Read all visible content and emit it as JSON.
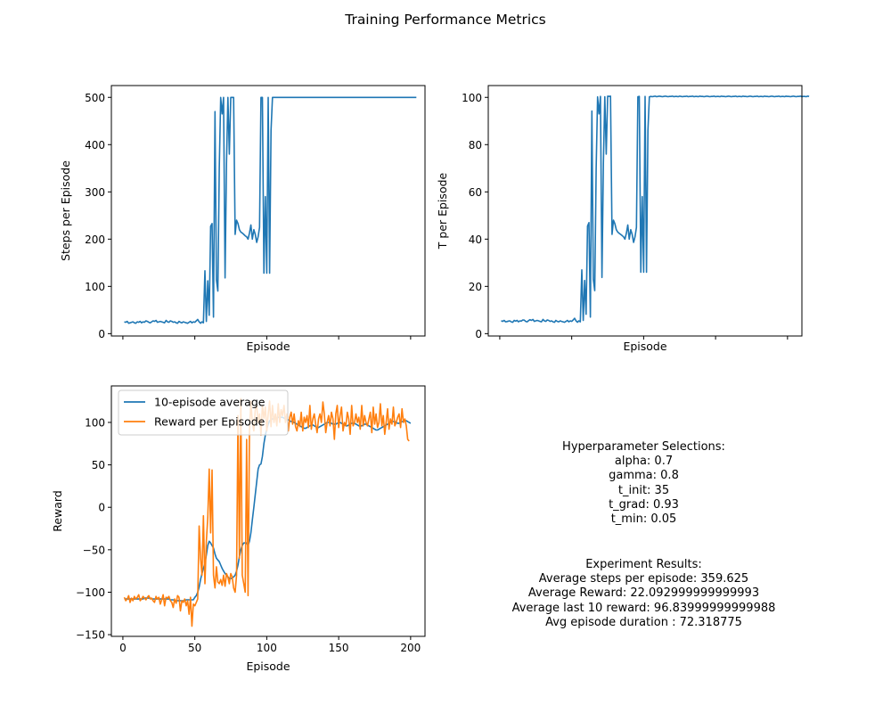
{
  "figure": {
    "title": "Training Performance Metrics"
  },
  "chart_data": [
    {
      "id": "steps",
      "type": "line",
      "title": "",
      "xlabel": "Episode",
      "ylabel": "Steps per Episode",
      "xlim": [
        -8,
        210
      ],
      "ylim": [
        -5,
        525
      ],
      "xticks": [
        0,
        50,
        100,
        150,
        200
      ],
      "xtick_labels_visible": false,
      "yticks": [
        0,
        100,
        200,
        300,
        400,
        500
      ],
      "grid": false,
      "color": "#1f77b4",
      "series": [
        {
          "x_start": 1,
          "values": [
            25,
            24,
            26,
            22,
            23,
            24,
            25,
            23,
            22,
            25,
            24,
            26,
            23,
            25,
            24,
            27,
            26,
            24,
            23,
            25,
            27,
            26,
            28,
            24,
            25,
            26,
            25,
            24,
            23,
            28,
            25,
            24,
            27,
            26,
            24,
            25,
            23,
            22,
            26,
            24,
            23,
            25,
            24,
            23,
            22,
            24,
            26,
            23,
            25,
            24,
            27,
            30,
            25,
            22,
            25,
            23,
            133,
            26,
            112,
            39,
            227,
            233,
            35,
            470,
            114,
            90,
            350,
            500,
            465,
            500,
            118,
            360,
            500,
            380,
            500,
            500,
            500,
            210,
            240,
            233,
            220,
            215,
            213,
            210,
            207,
            205,
            200,
            213,
            230,
            200,
            220,
            210,
            193,
            205,
            225,
            500,
            500,
            128,
            290,
            128,
            500,
            128,
            430,
            500,
            500,
            500,
            500,
            500,
            500,
            500,
            500,
            500,
            500,
            500,
            500,
            500,
            500,
            500,
            500,
            500,
            500,
            500,
            500,
            500,
            500,
            500,
            500,
            500,
            500,
            500,
            500,
            500,
            500,
            500,
            500,
            500,
            500,
            500,
            500,
            500,
            500,
            500,
            500,
            500,
            500,
            500,
            500,
            500,
            500,
            500,
            500,
            500,
            500,
            500,
            500,
            500,
            500,
            500,
            500,
            500,
            500,
            500,
            500,
            500,
            500,
            500,
            500,
            500,
            500,
            500,
            500,
            500,
            500,
            500,
            500,
            500,
            500,
            500,
            500,
            500,
            500,
            500,
            500,
            500,
            500,
            500,
            500,
            500,
            500,
            500,
            500,
            500,
            500,
            500,
            500,
            500,
            500,
            500,
            500,
            500,
            500,
            500,
            500,
            500
          ]
        }
      ]
    },
    {
      "id": "t",
      "type": "line",
      "title": "",
      "xlabel": "Episode",
      "ylabel": "T per Episode",
      "xlim": [
        -8,
        210
      ],
      "ylim": [
        -1,
        105
      ],
      "xticks": [
        0,
        50,
        100,
        150,
        200
      ],
      "xtick_labels_visible": false,
      "yticks": [
        0,
        20,
        40,
        60,
        80,
        100
      ],
      "grid": false,
      "color": "#1f77b4",
      "series": [
        {
          "x_start": 1,
          "values": [
            5.5,
            5.2,
            5.6,
            5.0,
            5.1,
            5.3,
            5.4,
            5.0,
            4.8,
            5.6,
            5.3,
            5.6,
            5.0,
            5.4,
            5.3,
            5.8,
            5.7,
            5.2,
            5.0,
            5.5,
            5.9,
            5.6,
            6.0,
            5.2,
            5.4,
            5.6,
            5.4,
            5.2,
            5.0,
            6.0,
            5.4,
            5.2,
            5.8,
            5.6,
            5.2,
            5.4,
            5.0,
            4.8,
            5.6,
            5.2,
            5.0,
            5.4,
            5.2,
            5.0,
            4.8,
            5.2,
            5.6,
            5.0,
            5.4,
            5.2,
            5.8,
            6.5,
            5.4,
            4.8,
            5.4,
            5.0,
            27,
            5.6,
            22.5,
            8.2,
            45.5,
            47,
            7,
            94.2,
            23,
            18.2,
            70,
            100.2,
            93,
            100.4,
            23.8,
            72.2,
            100.3,
            76,
            100.5,
            100.4,
            100.5,
            42,
            48,
            46.5,
            44,
            43,
            42.5,
            42,
            41.5,
            41,
            40,
            42.5,
            46,
            40,
            44,
            42,
            38.6,
            41,
            45,
            100.3,
            100.4,
            26,
            58,
            26,
            100.4,
            26,
            86,
            100.2,
            100.4,
            100.3,
            100.4,
            100.5,
            100.3,
            100.4,
            100.5,
            100.4,
            100.3,
            100.4,
            100.5,
            100.4,
            100.3,
            100.4,
            100.4,
            100.5,
            100.3,
            100.4,
            100.4,
            100.3,
            100.5,
            100.4,
            100.3,
            100.4,
            100.4,
            100.5,
            100.3,
            100.4,
            100.4,
            100.5,
            100.3,
            100.4,
            100.4,
            100.3,
            100.5,
            100.4,
            100.4,
            100.3,
            100.4,
            100.5,
            100.4,
            100.3,
            100.4,
            100.4,
            100.5,
            100.3,
            100.4,
            100.4,
            100.3,
            100.5,
            100.4,
            100.4,
            100.3,
            100.4,
            100.5,
            100.4,
            100.3,
            100.4,
            100.4,
            100.5,
            100.3,
            100.4,
            100.4,
            100.3,
            100.5,
            100.4,
            100.4,
            100.3,
            100.4,
            100.5,
            100.4,
            100.3,
            100.4,
            100.4,
            100.5,
            100.3,
            100.4,
            100.4,
            100.3,
            100.5,
            100.4,
            100.4,
            100.3,
            100.4,
            100.5,
            100.4,
            100.3,
            100.4,
            100.4,
            100.5,
            100.3,
            100.4,
            100.4,
            100.3,
            100.5,
            100.4,
            100.4,
            100.3,
            100.4,
            100.5,
            100.4,
            100.3,
            100.4,
            100.4,
            100.5,
            100.3,
            100.4,
            100.4,
            100.3,
            100.5,
            100.4
          ]
        }
      ]
    },
    {
      "id": "reward",
      "type": "line",
      "title": "",
      "xlabel": "Episode",
      "ylabel": "Reward",
      "xlim": [
        -8,
        210
      ],
      "ylim": [
        -152,
        143
      ],
      "xticks": [
        0,
        50,
        100,
        150,
        200
      ],
      "xtick_labels_visible": true,
      "yticks": [
        -150,
        -100,
        -50,
        0,
        50,
        100
      ],
      "grid": false,
      "legend": "upper-left",
      "series": [
        {
          "name": "10-episode average",
          "color": "#1f77b4",
          "x_start": 1,
          "values": [
            -108,
            -108,
            -108,
            -108,
            -108,
            -108,
            -108,
            -108,
            -108,
            -108,
            -108,
            -108,
            -108,
            -108,
            -107,
            -107,
            -107,
            -107,
            -107,
            -108,
            -108,
            -108,
            -108,
            -108,
            -108,
            -108,
            -108,
            -108,
            -108,
            -108,
            -108,
            -108,
            -109,
            -109,
            -109,
            -110,
            -110,
            -110,
            -110,
            -110,
            -110,
            -110,
            -110,
            -109,
            -109,
            -109,
            -109,
            -109,
            -109,
            -106,
            -104,
            -100,
            -94,
            -85,
            -78,
            -72,
            -66,
            -56,
            -45,
            -40,
            -42,
            -45,
            -48,
            -55,
            -60,
            -62,
            -64,
            -68,
            -72,
            -75,
            -78,
            -80,
            -82,
            -84,
            -84,
            -83,
            -82,
            -80,
            -75,
            -68,
            -58,
            -50,
            -45,
            -42,
            -42,
            -42,
            -45,
            -40,
            -30,
            -15,
            0,
            15,
            30,
            45,
            50,
            51,
            60,
            75,
            85,
            92,
            98,
            102,
            103,
            104,
            104,
            105,
            105,
            106,
            106,
            106,
            106,
            105,
            104,
            103,
            103,
            102,
            101,
            101,
            100,
            99,
            98,
            97,
            96,
            95,
            94,
            93,
            93,
            94,
            95,
            96,
            97,
            97,
            96,
            95,
            94,
            94,
            95,
            96,
            97,
            98,
            99,
            100,
            100,
            100,
            99,
            98,
            98,
            98,
            99,
            100,
            100,
            99,
            98,
            97,
            96,
            96,
            97,
            98,
            99,
            99,
            99,
            98,
            97,
            96,
            96,
            96,
            97,
            98,
            98,
            97,
            96,
            95,
            94,
            93,
            92,
            91,
            91,
            92,
            93,
            94,
            95,
            96,
            97,
            98,
            99,
            100,
            101,
            101,
            101,
            100,
            99,
            99,
            100,
            101,
            101,
            102,
            102,
            101,
            100,
            99
          ]
        },
        {
          "name": "Reward per Episode",
          "color": "#ff7f0e",
          "x_start": 1,
          "values": [
            -106,
            -110,
            -108,
            -104,
            -112,
            -107,
            -110,
            -105,
            -108,
            -106,
            -103,
            -110,
            -108,
            -105,
            -107,
            -109,
            -106,
            -104,
            -108,
            -107,
            -110,
            -112,
            -105,
            -108,
            -106,
            -114,
            -109,
            -103,
            -116,
            -106,
            -107,
            -105,
            -110,
            -112,
            -118,
            -108,
            -113,
            -104,
            -106,
            -122,
            -110,
            -112,
            -108,
            -116,
            -110,
            -126,
            -106,
            -140,
            -114,
            -116,
            -112,
            -108,
            -22,
            -60,
            -80,
            -10,
            -90,
            -40,
            -12,
            45,
            -30,
            44,
            -80,
            -95,
            -70,
            -88,
            -90,
            -85,
            -92,
            -80,
            -93,
            -78,
            -82,
            -90,
            -78,
            -82,
            -95,
            -100,
            -80,
            108,
            -60,
            128,
            -80,
            -90,
            -100,
            80,
            -104,
            90,
            125,
            100,
            90,
            115,
            120,
            100,
            110,
            85,
            120,
            105,
            118,
            90,
            110,
            125,
            95,
            120,
            100,
            110,
            96,
            122,
            100,
            115,
            108,
            120,
            100,
            110,
            90,
            106,
            112,
            98,
            110,
            95,
            90,
            102,
            95,
            112,
            90,
            106,
            100,
            108,
            94,
            120,
            92,
            104,
            110,
            98,
            88,
            104,
            110,
            100,
            124,
            110,
            88,
            100,
            108,
            96,
            112,
            104,
            80,
            110,
            120,
            94,
            108,
            118,
            90,
            100,
            96,
            112,
            104,
            86,
            120,
            96,
            100,
            110,
            100,
            106,
            92,
            120,
            96,
            108,
            100,
            96,
            104,
            112,
            88,
            118,
            98,
            110,
            94,
            100,
            122,
            96,
            108,
            86,
            100,
            116,
            92,
            104,
            98,
            118,
            96,
            100,
            106,
            110,
            94,
            116,
            100,
            104,
            96,
            80,
            78
          ]
        }
      ]
    }
  ],
  "hyperparameters": {
    "heading": "Hyperparameter Selections:",
    "lines": [
      "alpha: 0.7",
      "gamma: 0.8",
      "t_init: 35",
      "t_grad: 0.93",
      "t_min: 0.05"
    ]
  },
  "results": {
    "heading": "Experiment Results:",
    "lines": [
      "Average steps per episode: 359.625",
      "Average Reward: 22.092999999999993",
      "Average last 10 reward: 96.83999999999988",
      "Avg episode duration : 72.318775"
    ]
  }
}
